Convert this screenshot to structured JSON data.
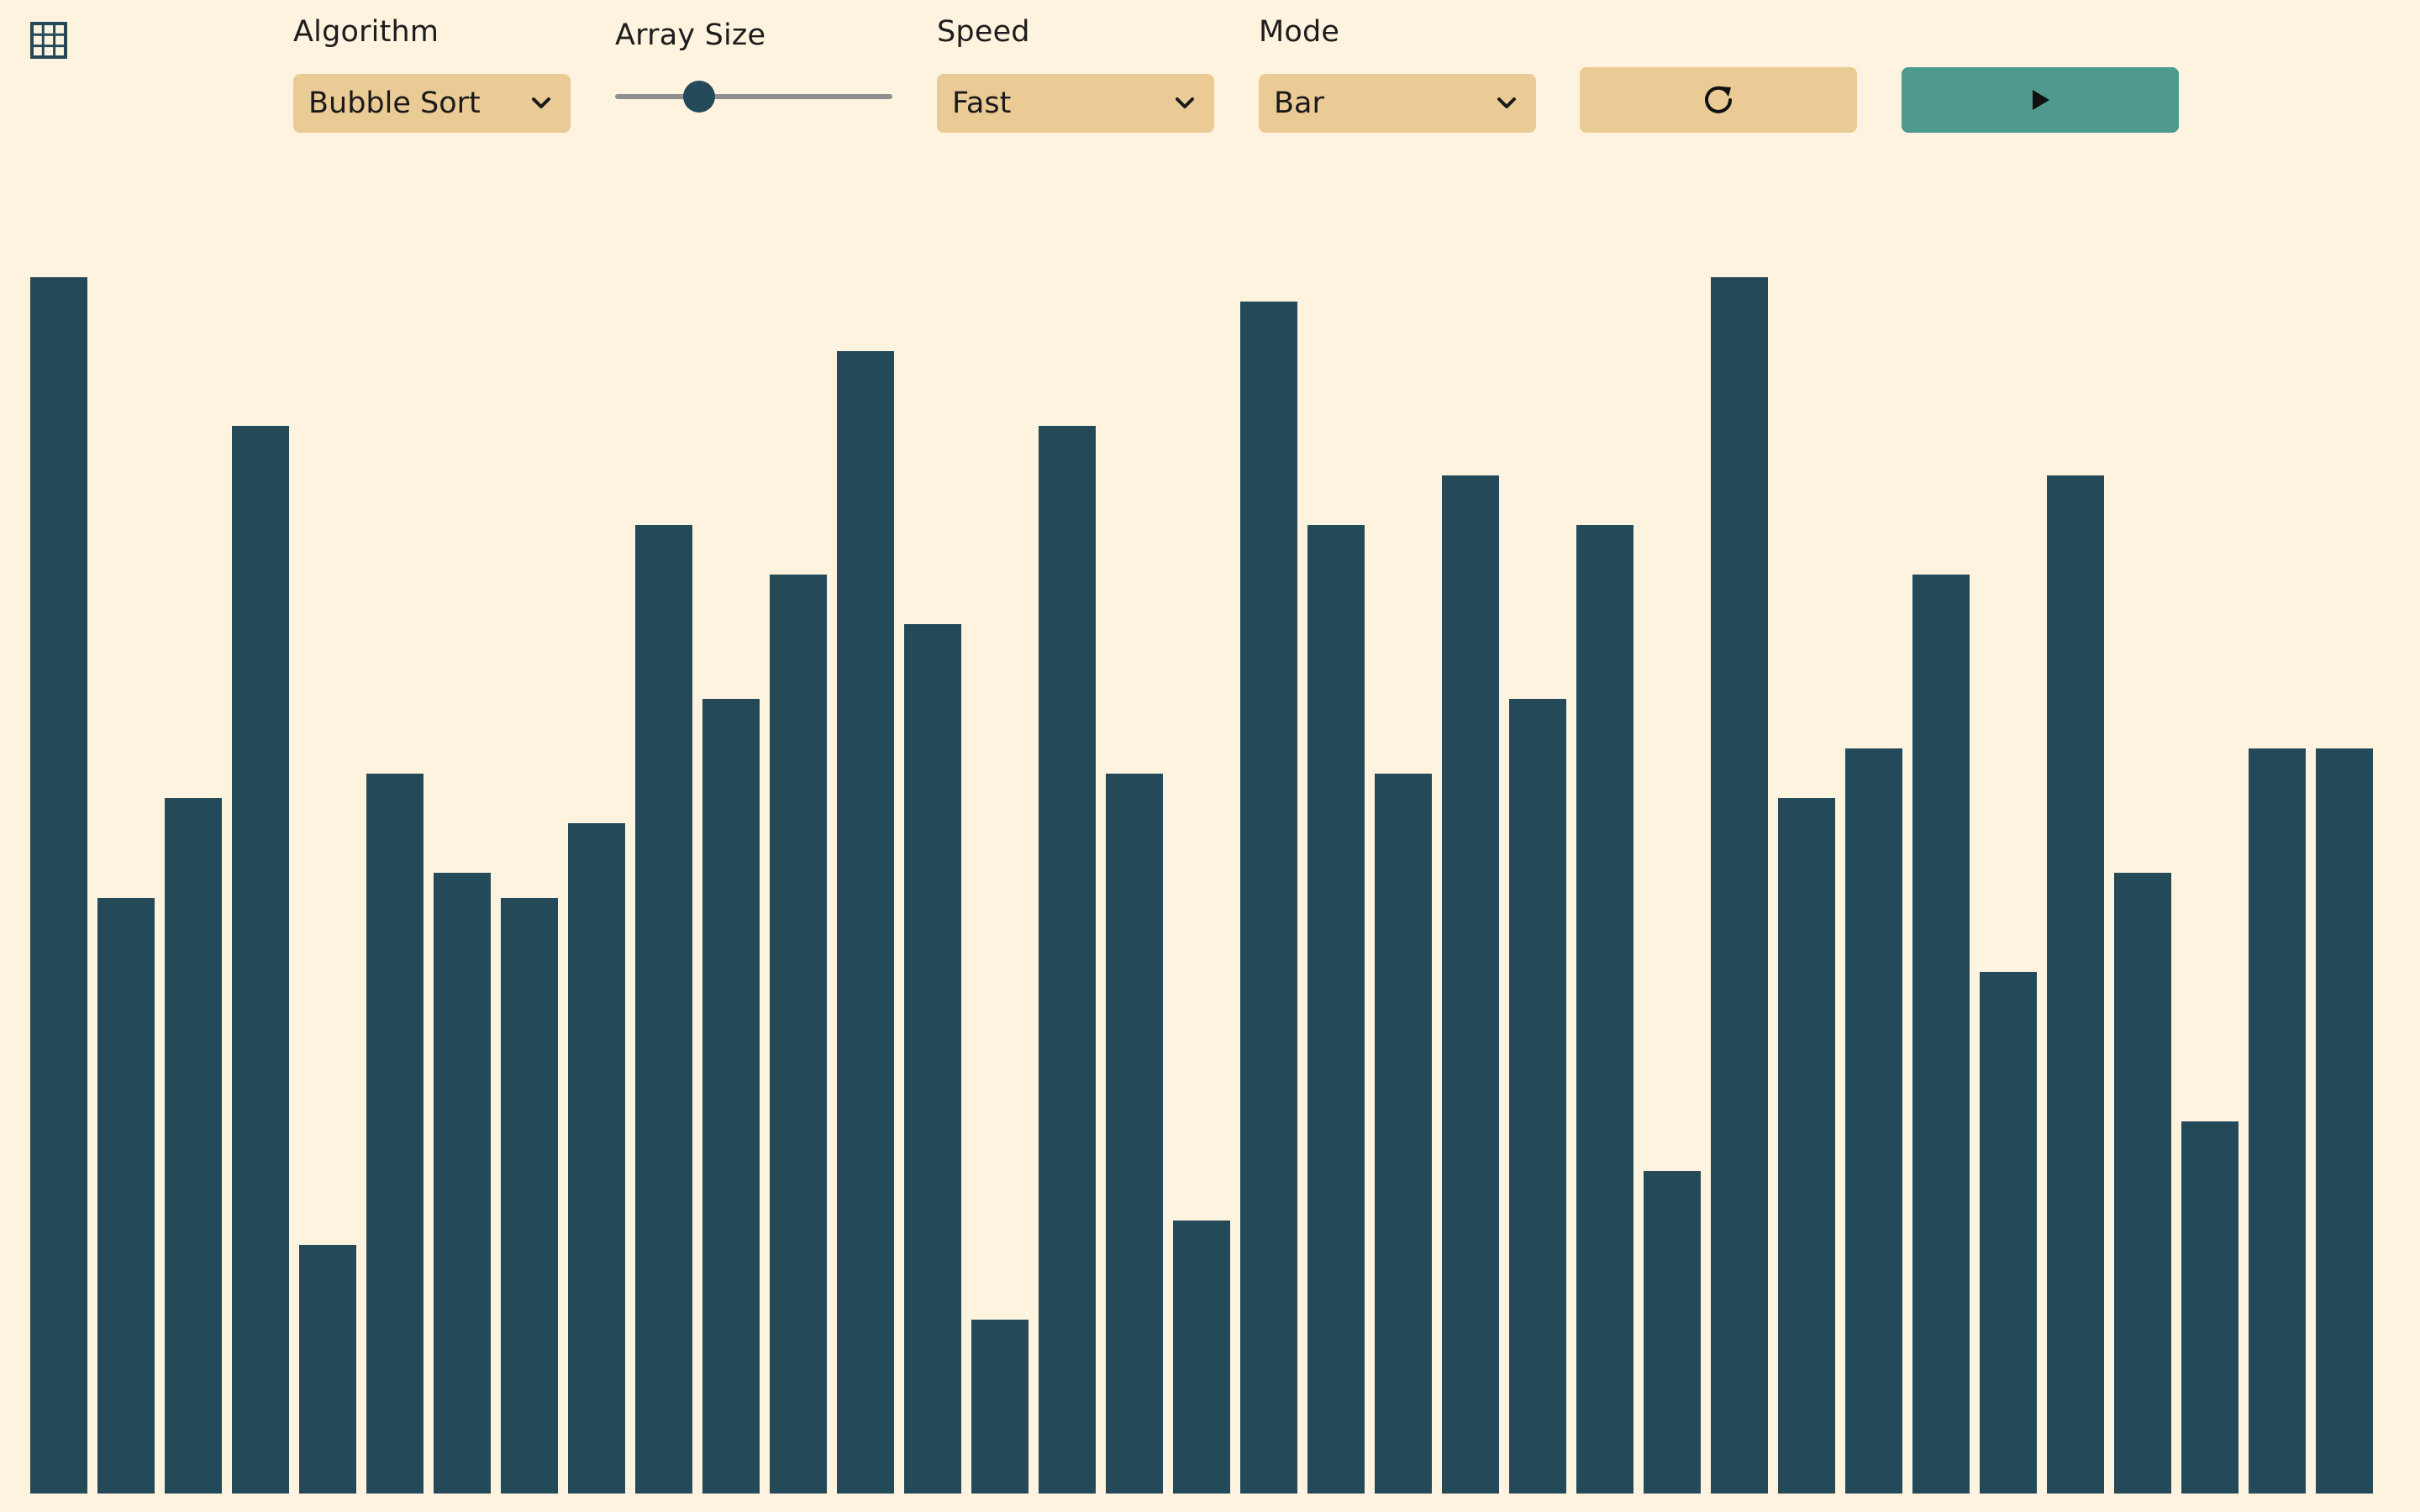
{
  "toolbar": {
    "grid_icon": "grid-icon",
    "algorithm": {
      "label": "Algorithm",
      "selected": "Bubble Sort"
    },
    "array_size": {
      "label": "Array Size",
      "value_fraction": 0.3
    },
    "speed": {
      "label": "Speed",
      "selected": "Fast"
    },
    "mode": {
      "label": "Mode",
      "selected": "Bar"
    },
    "reset_icon": "refresh-icon",
    "play_icon": "play-icon"
  },
  "colors": {
    "background": "#FDF3DF",
    "bar": "#244A5A",
    "control": "#EBCB95",
    "play": "#4E9A8E"
  },
  "chart_data": {
    "type": "bar",
    "values": [
      98,
      48,
      56,
      86,
      20,
      58,
      50,
      48,
      54,
      78,
      64,
      74,
      92,
      70,
      14,
      86,
      58,
      22,
      96,
      78,
      58,
      82,
      64,
      78,
      26,
      98,
      56,
      60,
      74,
      42,
      82,
      50,
      30,
      60,
      60
    ],
    "ylim": [
      0,
      100
    ]
  }
}
